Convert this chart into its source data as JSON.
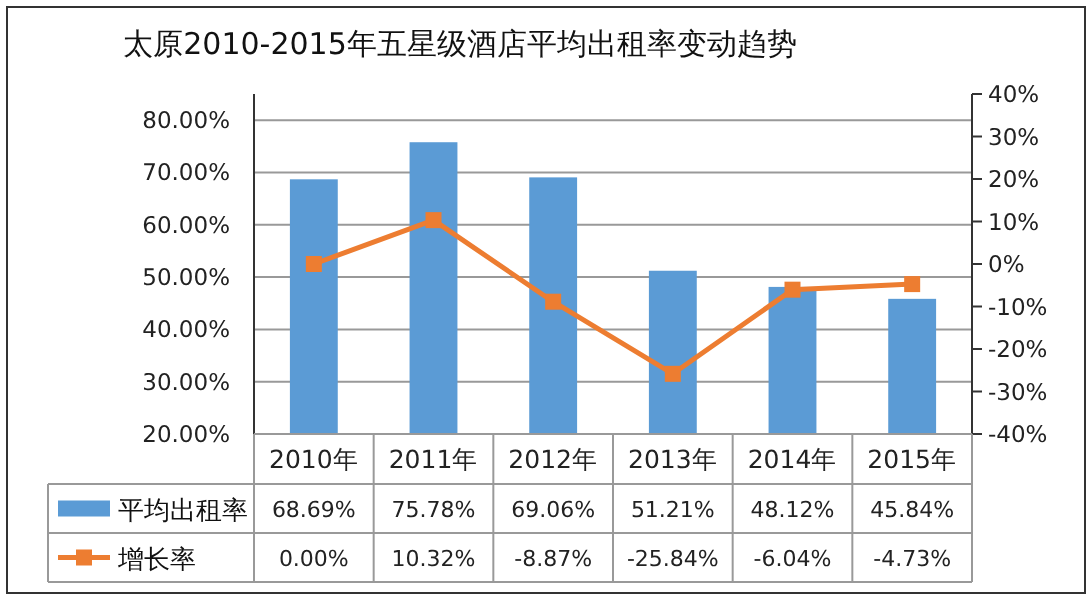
{
  "chart_data": {
    "type": "bar",
    "title": "太原2010-2015年五星级酒店平均出租率变动趋势",
    "categories": [
      "2010年",
      "2011年",
      "2012年",
      "2013年",
      "2014年",
      "2015年"
    ],
    "series": [
      {
        "name": "平均出租率",
        "color": "#5b9bd5",
        "values": [
          68.69,
          75.78,
          69.06,
          51.21,
          48.12,
          45.84
        ],
        "value_labels": [
          "68.69%",
          "75.78%",
          "69.06%",
          "51.21%",
          "48.12%",
          "45.84%"
        ]
      },
      {
        "name": "增长率",
        "type": "line",
        "axis": "y2",
        "color": "#ed7d31",
        "marker": "square",
        "values": [
          0.0,
          10.32,
          -8.87,
          -25.84,
          -6.04,
          -4.73
        ],
        "value_labels": [
          "0.00%",
          "10.32%",
          "-8.87%",
          "-25.84%",
          "-6.04%",
          "-4.73%"
        ]
      }
    ],
    "ylim": [
      20,
      85
    ],
    "yticks": [
      {
        "value": 20,
        "label": "20.00%"
      },
      {
        "value": 30,
        "label": "30.00%"
      },
      {
        "value": 40,
        "label": "40.00%"
      },
      {
        "value": 50,
        "label": "50.00%"
      },
      {
        "value": 60,
        "label": "60.00%"
      },
      {
        "value": 70,
        "label": "70.00%"
      },
      {
        "value": 80,
        "label": "80.00%"
      }
    ],
    "y2lim": [
      -40,
      40
    ],
    "y2ticks": [
      {
        "value": -40,
        "label": "-40%"
      },
      {
        "value": -30,
        "label": "-30%"
      },
      {
        "value": -20,
        "label": "-20%"
      },
      {
        "value": -10,
        "label": "-10%"
      },
      {
        "value": 0,
        "label": "0%"
      },
      {
        "value": 10,
        "label": "10%"
      },
      {
        "value": 20,
        "label": "20%"
      },
      {
        "value": 30,
        "label": "30%"
      },
      {
        "value": 40,
        "label": "40%"
      }
    ],
    "grid": "y",
    "legend": "bottom"
  }
}
